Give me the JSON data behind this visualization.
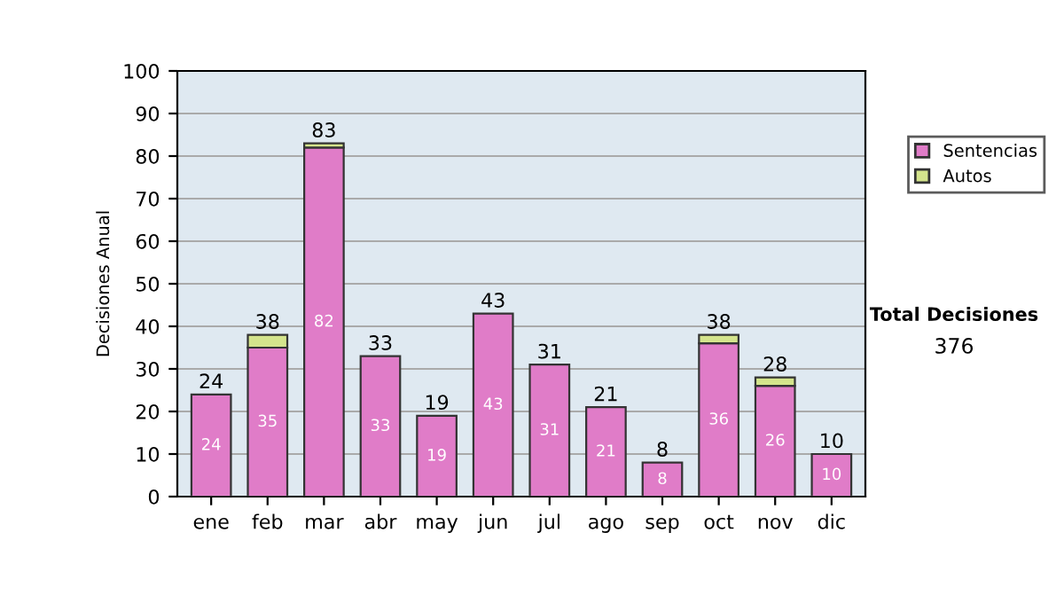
{
  "chart_data": {
    "type": "bar",
    "stacked": true,
    "ylabel": "Decisiones Anual",
    "categories": [
      "ene",
      "feb",
      "mar",
      "abr",
      "may",
      "jun",
      "jul",
      "ago",
      "sep",
      "oct",
      "nov",
      "dic"
    ],
    "series": [
      {
        "name": "Sentencias",
        "color": "#e07cc8",
        "values": [
          24,
          35,
          82,
          33,
          19,
          43,
          31,
          21,
          8,
          36,
          26,
          10
        ],
        "value_labels": [
          "24",
          "35",
          "82",
          "33",
          "19",
          "43",
          "31",
          "21",
          "8",
          "36",
          "26",
          "10"
        ]
      },
      {
        "name": "Autos",
        "color": "#d4e48c",
        "values": [
          null,
          3,
          1,
          null,
          null,
          null,
          null,
          null,
          null,
          2,
          2,
          null
        ]
      }
    ],
    "totals": [
      "24",
      "38",
      "83",
      "33",
      "19",
      "43",
      "31",
      "21",
      "8",
      "38",
      "28",
      "10"
    ],
    "ylim": [
      0,
      100
    ],
    "yticks": [
      0,
      10,
      20,
      30,
      40,
      50,
      60,
      70,
      80,
      90,
      100
    ],
    "grid": "y",
    "legend": "right",
    "annotations": [
      "Total Decisiones",
      "376"
    ]
  }
}
